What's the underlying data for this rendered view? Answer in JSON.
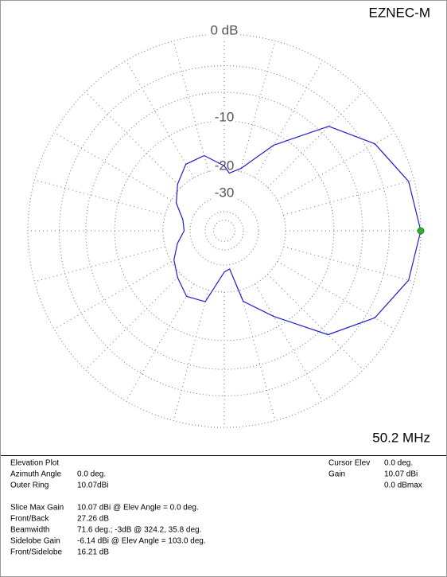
{
  "chart_data": {
    "type": "polar",
    "title": "EZNEC-M",
    "subtitle": "50.2 MHz",
    "rticks": [
      {
        "value": 0,
        "label": "0 dB"
      },
      {
        "value": -3,
        "label": null
      },
      {
        "value": -6,
        "label": null
      },
      -10,
      -20,
      -30,
      {
        "value": -40,
        "label": null
      },
      {
        "value": -50,
        "label": null
      }
    ],
    "series": [
      {
        "name": "Elevation Plot",
        "color": "#1f1fcf",
        "x": [
          0,
          15,
          30,
          45,
          60,
          75,
          85,
          90,
          105,
          120,
          135,
          150,
          165,
          180,
          195,
          210,
          225,
          240,
          255,
          270,
          278,
          285,
          300,
          315,
          330,
          345
        ],
        "values": [
          0,
          -0.5,
          -2.1,
          -4.9,
          -11.8,
          -19.1,
          -21,
          -19,
          -15.9,
          -16.1,
          -18.7,
          -21.7,
          -26.1,
          -27.26,
          -24,
          -20.9,
          -18.7,
          -16.4,
          -16.9,
          -26.8,
          -28,
          -17,
          -11.8,
          -5,
          -2.1,
          -0.5
        ]
      }
    ],
    "cursor_color": "#2fb02f"
  },
  "info_panel": {
    "left": [
      [
        "Elevation Plot",
        null
      ],
      [
        "Azimuth Angle",
        "0.0 deg."
      ],
      [
        "Outer Ring",
        "10.07dBi"
      ],
      [
        "Slice Max Gain",
        "10.07 dBi @ Elev Angle = 0.0 deg."
      ],
      [
        "Front/Back",
        "27.26 dB"
      ],
      [
        "Beamwidth",
        "71.6 deg.; -3dB @ 324.2, 35.8 deg."
      ],
      [
        "Sidelobe Gain",
        "-6.14 dBi @ Elev Angle = 103.0 deg."
      ],
      [
        "Front/Sidelobe",
        "16.21 dB"
      ]
    ],
    "right": [
      [
        "Cursor Elev",
        "0.0 deg."
      ],
      [
        "Gain",
        "10.07 dBi"
      ],
      [
        null,
        "0.0 dBmax"
      ]
    ]
  }
}
